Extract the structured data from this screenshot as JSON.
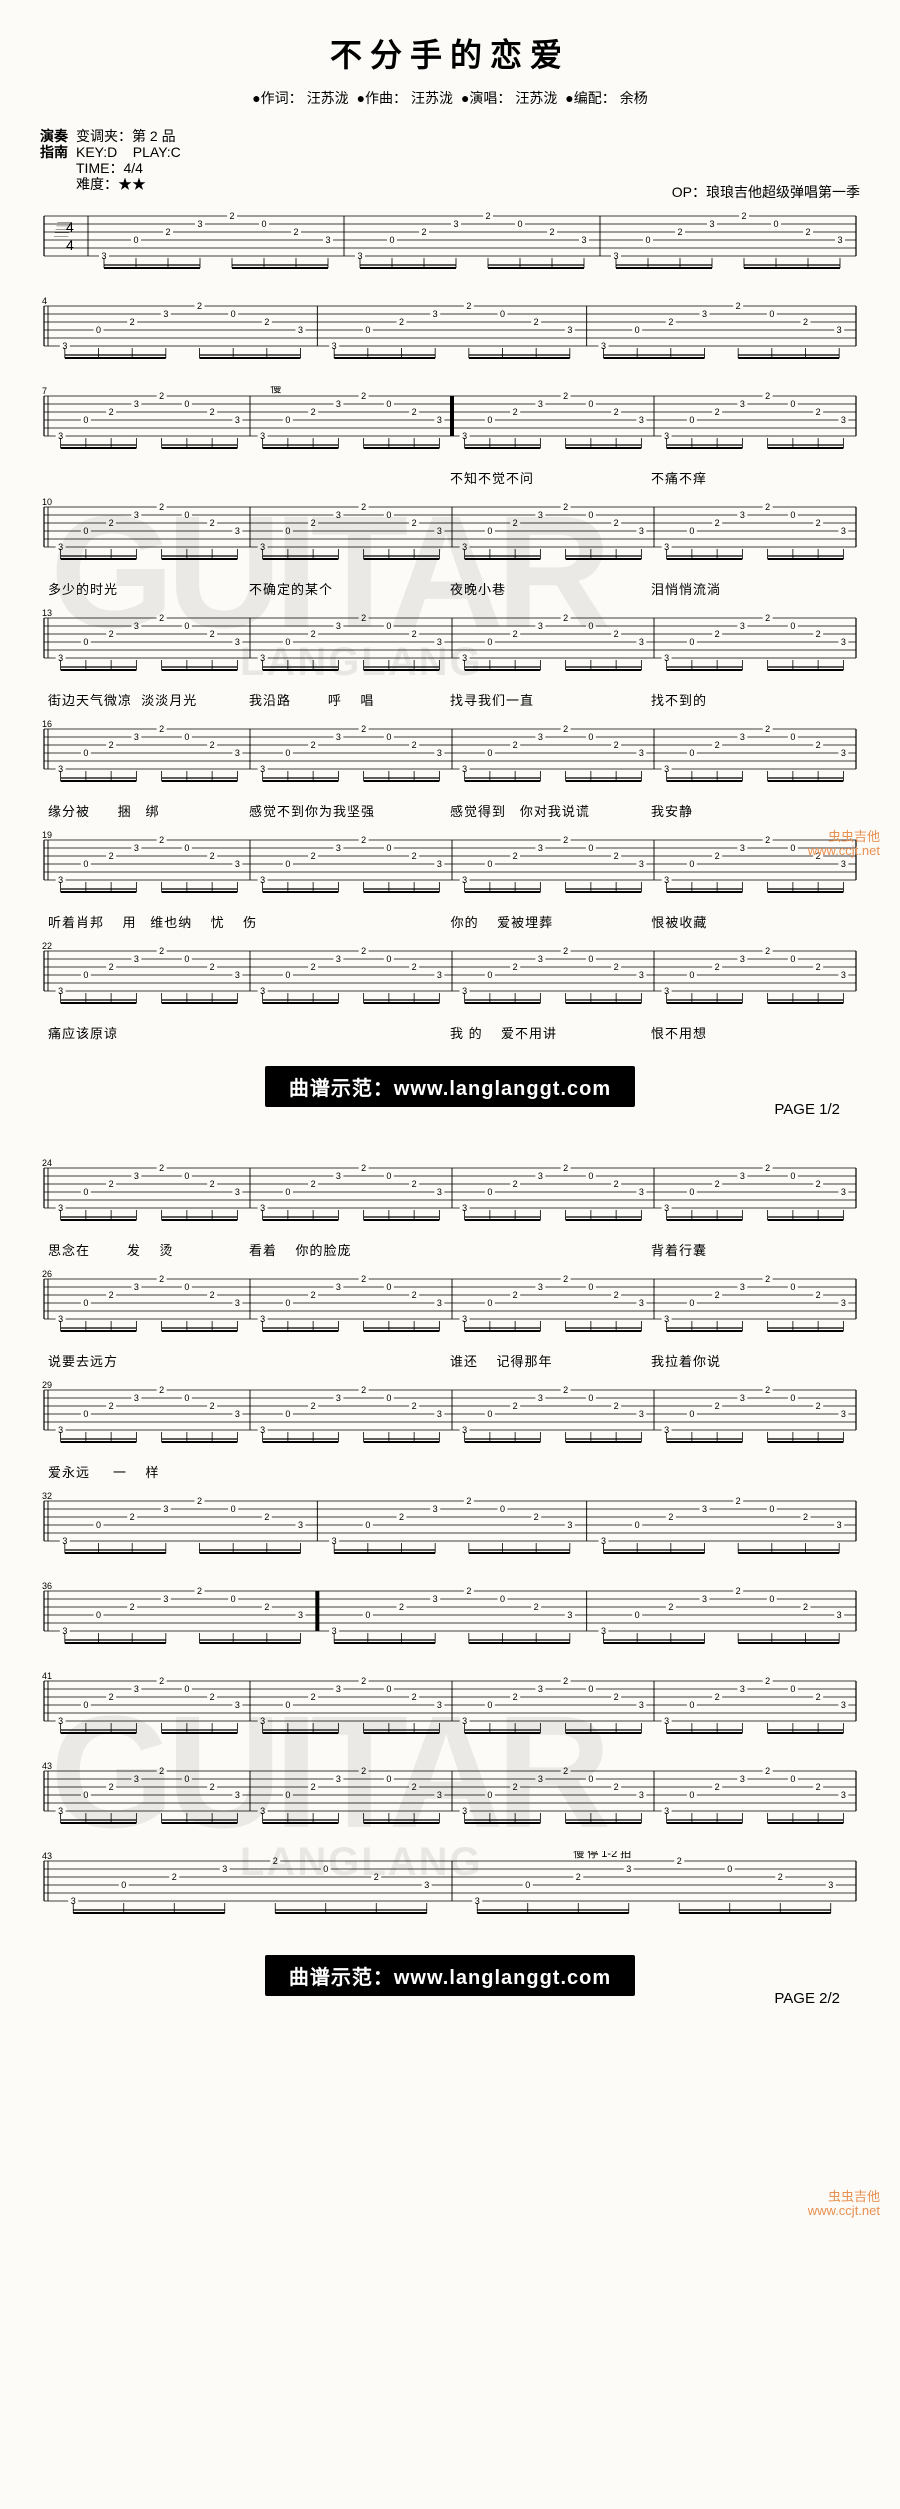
{
  "title": "不分手的恋爱",
  "credits": {
    "lyricist_label": "●作词：",
    "lyricist": "汪苏泷",
    "composer_label": "●作曲：",
    "composer": "汪苏泷",
    "performer_label": "●演唱：",
    "performer": "汪苏泷",
    "arranger_label": "●编配：",
    "arranger": "余杨"
  },
  "sidebar": {
    "col1_top": "演奏",
    "col1_bot": "指南",
    "capo": "变调夹：第 2 品",
    "key": "KEY:D    PLAY:C",
    "time": "TIME：4/4",
    "difficulty_label": "难度：",
    "difficulty": "★★"
  },
  "op": "OP：琅琅吉他超级弹唱第一季",
  "tempo_mark1": "慢",
  "tempo_mark2": "慢        停 1-2 拍",
  "measure_nums": [
    "4",
    "7",
    "10",
    "13",
    "16",
    "19",
    "22",
    "24",
    "26",
    "29",
    "32",
    "36",
    "41",
    "43"
  ],
  "lyrics": [
    {
      "bars": [
        "",
        "",
        "不知不觉不问",
        "不痛不痒"
      ]
    },
    {
      "bars": [
        "多少的时光",
        "不确定的某个",
        "夜晚小巷",
        "泪悄悄流淌"
      ]
    },
    {
      "bars": [
        "街边天气微凉  淡淡月光",
        "我沿路        呼    唱",
        "找寻我们一直",
        "找不到的"
      ]
    },
    {
      "bars": [
        "缘分被      捆   绑",
        "感觉不到你为我坚强",
        "感觉得到   你对我说谎",
        "我安静"
      ]
    },
    {
      "bars": [
        "听着肖邦    用   维也纳    忧    伤",
        "",
        "你的    爱被埋葬",
        "恨被收藏"
      ]
    },
    {
      "bars": [
        "痛应该原谅",
        "",
        "我 的    爱不用讲",
        "恨不用想"
      ]
    },
    {
      "bars": [
        "思念在        发    烫",
        "看着    你的脸庞",
        "",
        "背着行囊"
      ]
    },
    {
      "bars": [
        "说要去远方",
        "",
        "谁还    记得那年",
        "我拉着你说"
      ]
    },
    {
      "bars": [
        "爱永远     一    样",
        "",
        "",
        ""
      ]
    }
  ],
  "demo_text": "曲谱示范：www.langlanggt.com",
  "page1": "PAGE 1/2",
  "page2": "PAGE 2/2",
  "tab_style": {
    "string_color": "#000",
    "num_measures": 3,
    "frets_per_measure": [
      [
        "0",
        "2",
        "3",
        "2",
        "0",
        "2",
        "3",
        "2"
      ],
      [
        "1",
        "0",
        "1",
        "0"
      ],
      [
        "0",
        "0",
        "2",
        "0"
      ]
    ]
  },
  "cc_watermark": {
    "line1": "虫虫吉他",
    "line2": "www.ccjt.net"
  }
}
